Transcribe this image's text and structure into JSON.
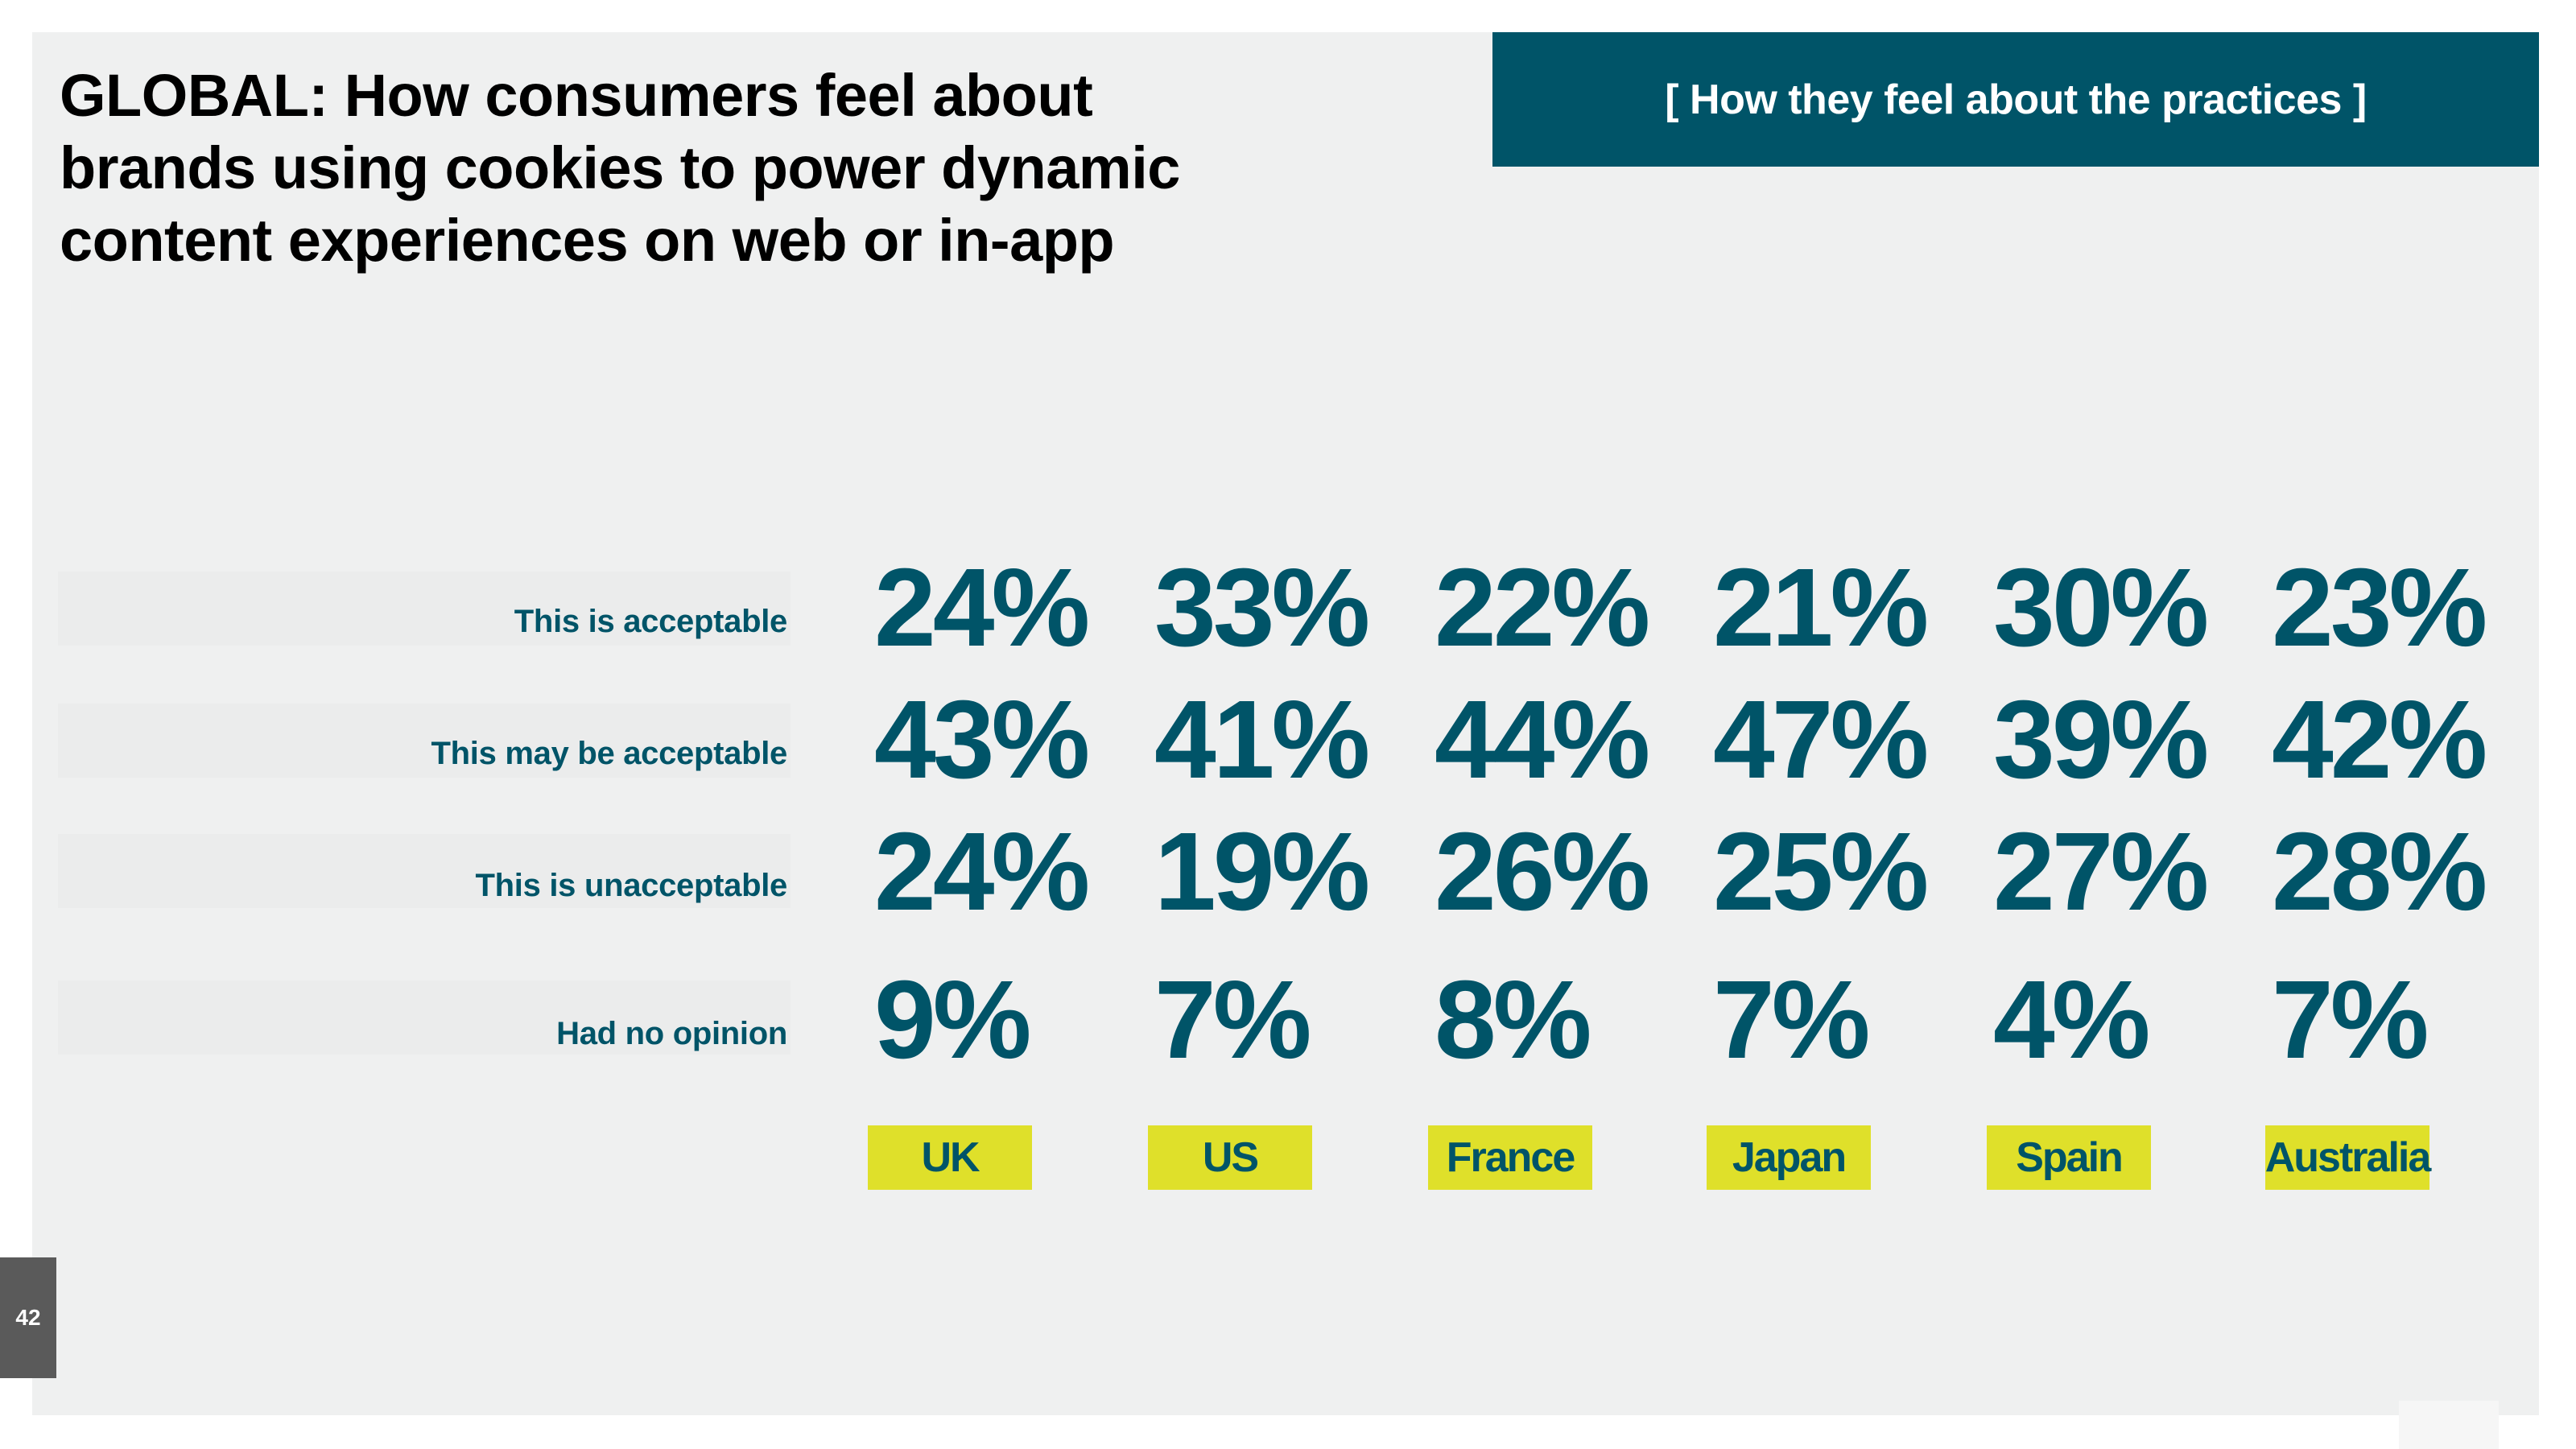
{
  "header": {
    "title_lines": [
      "GLOBAL: How consumers feel about",
      "brands using cookies to power dynamic",
      "content experiences on web or in-app"
    ],
    "banner": "[ How they feel about the practices ]"
  },
  "chart_data": {
    "type": "table",
    "title": "GLOBAL: How consumers feel about brands using cookies to power dynamic content experiences on web or in-app",
    "columns": [
      "UK",
      "US",
      "France",
      "Japan",
      "Spain",
      "Australia"
    ],
    "rows": [
      {
        "label": "This is acceptable",
        "values": [
          "24%",
          "33%",
          "22%",
          "21%",
          "30%",
          "23%"
        ]
      },
      {
        "label": "This may be acceptable",
        "values": [
          "43%",
          "41%",
          "44%",
          "47%",
          "39%",
          "42%"
        ]
      },
      {
        "label": "This is unacceptable",
        "values": [
          "24%",
          "19%",
          "26%",
          "25%",
          "27%",
          "28%"
        ]
      },
      {
        "label": "Had no opinion",
        "values": [
          "9%",
          "7%",
          "8%",
          "7%",
          "4%",
          "7%"
        ]
      }
    ]
  },
  "footer": {
    "page_number": "42"
  },
  "colors": {
    "accent_dark_teal": "#005468",
    "country_tag_yellow": "#dfe02a",
    "panel_background": "#eff0f0"
  }
}
